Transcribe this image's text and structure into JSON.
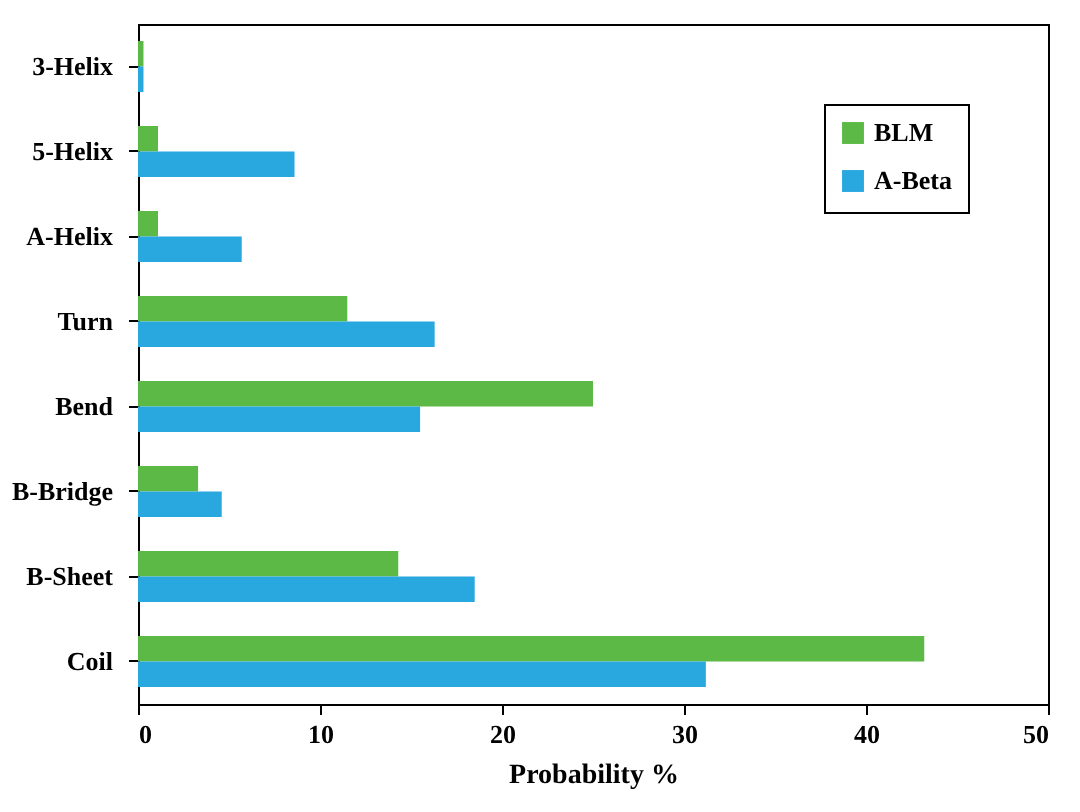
{
  "chart_data": {
    "type": "bar",
    "orientation": "horizontal",
    "xlabel": "Probability %",
    "categories": [
      "3-Helix",
      "5-Helix",
      "A-Helix",
      "Turn",
      "Bend",
      "B-Bridge",
      "B-Sheet",
      "Coil"
    ],
    "series": [
      {
        "name": "BLM",
        "color": "#5cb946",
        "values": [
          0.3,
          1.1,
          1.1,
          11.5,
          25.0,
          3.3,
          14.3,
          43.2
        ]
      },
      {
        "name": "A-Beta",
        "color": "#29a8e0",
        "values": [
          0.3,
          8.6,
          5.7,
          16.3,
          15.5,
          4.6,
          18.5,
          31.2
        ]
      }
    ],
    "xlim": [
      0,
      50
    ],
    "xticks": [
      0,
      10,
      20,
      30,
      40,
      50
    ],
    "grid": false,
    "legend": "top right"
  }
}
